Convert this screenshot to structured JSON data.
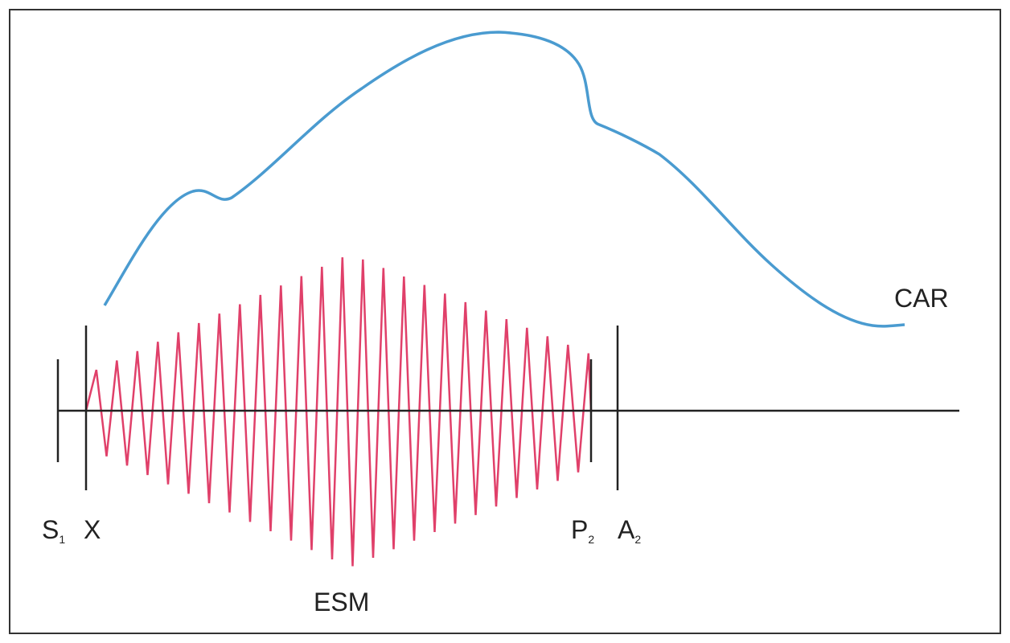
{
  "labels": {
    "s1": {
      "letter": "S",
      "sub": "1"
    },
    "x": "X",
    "p2": {
      "letter": "P",
      "sub": "2"
    },
    "a2": {
      "letter": "A",
      "sub": "2"
    },
    "murmur": "ESM",
    "carotid": "CAR"
  }
}
